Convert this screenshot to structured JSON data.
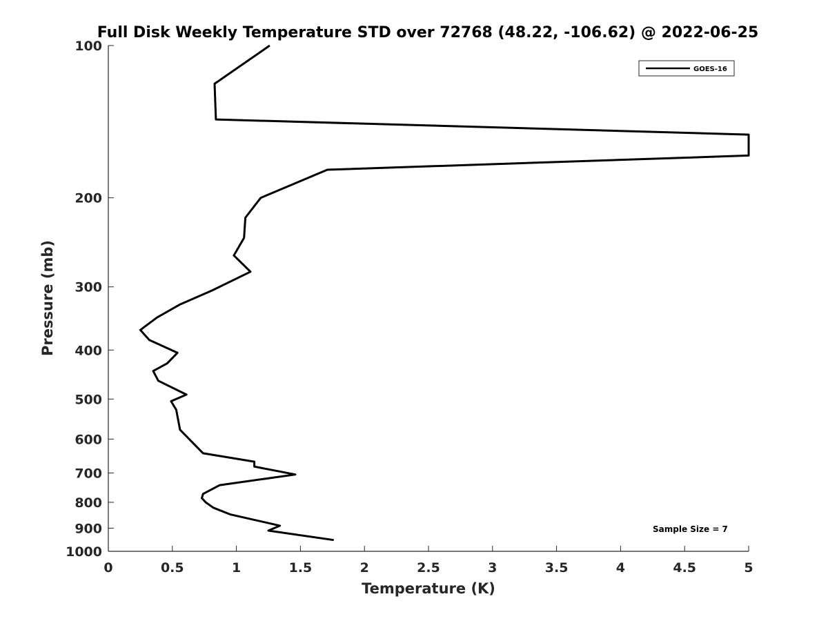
{
  "chart_data": {
    "type": "line",
    "title": "Full Disk Weekly Temperature STD over 72768 (48.22, -106.62) @ 2022-06-25",
    "xlabel": "Temperature (K)",
    "ylabel": "Pressure (mb)",
    "xlim": [
      0,
      5
    ],
    "ylim": [
      100,
      1000
    ],
    "y_reversed": true,
    "y_scale": "log",
    "grid": false,
    "legend_position": "top-right",
    "x_ticks": [
      "0",
      "0.5",
      "1",
      "1.5",
      "2",
      "2.5",
      "3",
      "3.5",
      "4",
      "4.5",
      "5"
    ],
    "y_ticks": [
      "100",
      "200",
      "300",
      "400",
      "500",
      "600",
      "700",
      "800",
      "900",
      "1000"
    ],
    "series": [
      {
        "name": "GOES-16",
        "color": "#000000",
        "x": [
          1.26,
          0.83,
          0.84,
          5.0,
          5.0,
          1.71,
          1.19,
          1.07,
          1.06,
          0.98,
          1.11,
          0.81,
          0.56,
          0.38,
          0.25,
          0.32,
          0.54,
          0.46,
          0.35,
          0.39,
          0.61,
          0.49,
          0.53,
          0.56,
          0.74,
          1.14,
          1.14,
          1.46,
          0.87,
          0.74,
          0.73,
          0.76,
          0.82,
          0.95,
          1.34,
          1.25,
          1.76
        ],
        "y": [
          100,
          119,
          140,
          150,
          165,
          176,
          200,
          219,
          240,
          260,
          280,
          305,
          325,
          345,
          365,
          382,
          405,
          425,
          440,
          460,
          490,
          505,
          525,
          575,
          640,
          665,
          680,
          705,
          740,
          770,
          785,
          800,
          820,
          845,
          890,
          910,
          950
        ]
      }
    ],
    "annotations": [
      "Sample Size = 7"
    ]
  }
}
